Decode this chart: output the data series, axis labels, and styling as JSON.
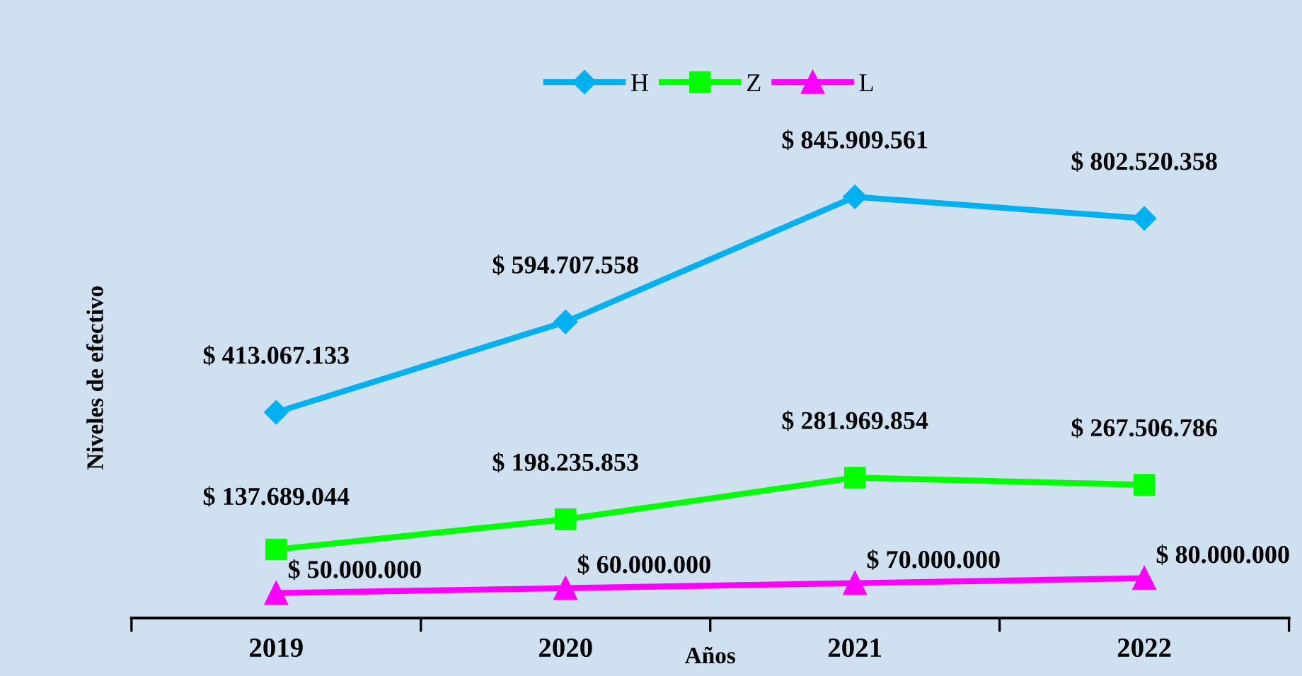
{
  "chart_data": {
    "type": "line",
    "xlabel": "Años",
    "ylabel": "Niveles de efectivo",
    "categories": [
      "2019",
      "2020",
      "2021",
      "2022"
    ],
    "tick_labels": "x",
    "legend": "top",
    "grid": false,
    "series": [
      {
        "name": "H",
        "color": "#00b0f0",
        "marker": "diamond",
        "values": [
          413067133,
          594707558,
          845909561,
          802520358
        ],
        "value_labels": [
          "$ 413.067.133",
          "$ 594.707.558",
          "$ 845.909.561",
          "$ 802.520.358"
        ]
      },
      {
        "name": "Z",
        "color": "#00ff00",
        "marker": "square",
        "values": [
          137689044,
          198235853,
          281969854,
          267506786
        ],
        "value_labels": [
          "$ 137.689.044",
          "$ 198.235.853",
          "$ 281.969.854",
          "$ 267.506.786"
        ]
      },
      {
        "name": "L",
        "color": "#ff00ff",
        "marker": "triangle",
        "values": [
          50000000,
          60000000,
          70000000,
          80000000
        ],
        "value_labels": [
          "$ 50.000.000",
          "$ 60.000.000",
          "$ 70.000.000",
          "$ 80.000.000"
        ]
      }
    ]
  }
}
